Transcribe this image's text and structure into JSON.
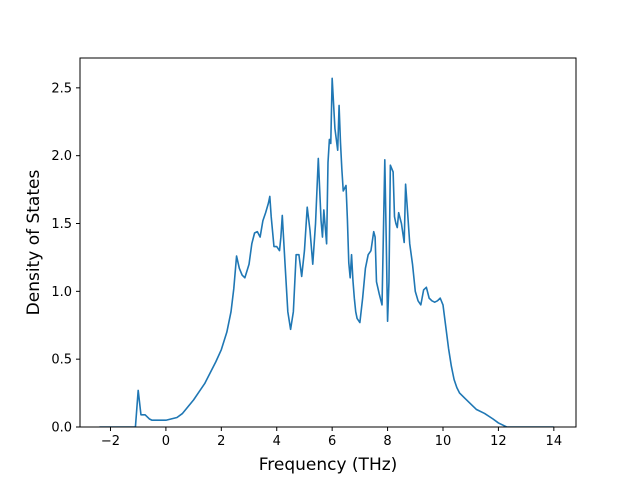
{
  "chart_data": {
    "type": "line",
    "title": "",
    "xlabel": "Frequency (THz)",
    "ylabel": "Density of States",
    "xlim": [
      -3.1,
      14.8
    ],
    "ylim": [
      0,
      2.72
    ],
    "xticks": [
      -2,
      0,
      2,
      4,
      6,
      8,
      10,
      12,
      14
    ],
    "yticks": [
      0.0,
      0.5,
      1.0,
      1.5,
      2.0,
      2.5
    ],
    "xtick_labels": [
      "−2",
      "0",
      "2",
      "4",
      "6",
      "8",
      "10",
      "12",
      "14"
    ],
    "ytick_labels": [
      "0.0",
      "0.5",
      "1.0",
      "1.5",
      "2.0",
      "2.5"
    ],
    "grid": false,
    "legend": "none",
    "line_color": "#1f77b4",
    "series": [
      {
        "x": [
          -2.4,
          -1.1,
          -1.0,
          -0.9,
          -0.75,
          -0.6,
          -0.5,
          -0.2,
          0.0,
          0.2,
          0.4,
          0.6,
          0.8,
          1.0,
          1.2,
          1.4,
          1.6,
          1.8,
          2.0,
          2.2,
          2.35,
          2.45,
          2.55,
          2.65,
          2.75,
          2.85,
          3.0,
          3.1,
          3.2,
          3.3,
          3.4,
          3.5,
          3.6,
          3.7,
          3.75,
          3.8,
          3.9,
          4.0,
          4.1,
          4.15,
          4.2,
          4.3,
          4.4,
          4.5,
          4.6,
          4.7,
          4.8,
          4.9,
          5.0,
          5.1,
          5.2,
          5.3,
          5.4,
          5.5,
          5.6,
          5.65,
          5.7,
          5.8,
          5.85,
          5.9,
          5.95,
          6.0,
          6.1,
          6.2,
          6.25,
          6.3,
          6.35,
          6.4,
          6.5,
          6.55,
          6.6,
          6.65,
          6.7,
          6.75,
          6.8,
          6.85,
          6.9,
          7.0,
          7.1,
          7.2,
          7.3,
          7.4,
          7.5,
          7.55,
          7.6,
          7.7,
          7.8,
          7.9,
          7.95,
          8.0,
          8.05,
          8.1,
          8.2,
          8.25,
          8.3,
          8.35,
          8.4,
          8.5,
          8.6,
          8.65,
          8.7,
          8.8,
          8.9,
          8.95,
          9.0,
          9.1,
          9.2,
          9.3,
          9.4,
          9.5,
          9.6,
          9.7,
          9.8,
          9.9,
          10.0,
          10.1,
          10.2,
          10.3,
          10.35,
          10.4,
          10.5,
          10.6,
          10.8,
          11.0,
          11.2,
          11.5,
          11.8,
          12.0,
          12.3,
          12.5,
          12.6,
          12.7,
          13.0,
          14.0
        ],
        "y": [
          0.0,
          0.0,
          0.27,
          0.09,
          0.09,
          0.06,
          0.05,
          0.05,
          0.05,
          0.06,
          0.07,
          0.1,
          0.15,
          0.2,
          0.26,
          0.32,
          0.4,
          0.48,
          0.57,
          0.7,
          0.85,
          1.02,
          1.26,
          1.17,
          1.12,
          1.1,
          1.2,
          1.35,
          1.43,
          1.44,
          1.4,
          1.52,
          1.58,
          1.65,
          1.7,
          1.55,
          1.33,
          1.33,
          1.3,
          1.4,
          1.56,
          1.2,
          0.85,
          0.72,
          0.85,
          1.27,
          1.27,
          1.11,
          1.3,
          1.62,
          1.45,
          1.2,
          1.5,
          1.98,
          1.52,
          1.4,
          1.6,
          1.35,
          1.95,
          2.12,
          2.09,
          2.57,
          2.2,
          2.04,
          2.37,
          2.1,
          1.9,
          1.74,
          1.78,
          1.53,
          1.21,
          1.1,
          1.27,
          1.08,
          0.95,
          0.85,
          0.8,
          0.77,
          0.95,
          1.17,
          1.27,
          1.3,
          1.44,
          1.4,
          1.07,
          0.98,
          0.9,
          1.97,
          1.4,
          0.78,
          1.07,
          1.93,
          1.88,
          1.55,
          1.5,
          1.47,
          1.58,
          1.5,
          1.36,
          1.79,
          1.65,
          1.35,
          1.2,
          1.1,
          1.0,
          0.93,
          0.9,
          1.01,
          1.03,
          0.95,
          0.93,
          0.92,
          0.93,
          0.95,
          0.9,
          0.74,
          0.58,
          0.45,
          0.4,
          0.35,
          0.29,
          0.25,
          0.21,
          0.17,
          0.13,
          0.1,
          0.06,
          0.03,
          0.0,
          0.0,
          0.0,
          0.0,
          0.0,
          0.0
        ]
      }
    ]
  }
}
